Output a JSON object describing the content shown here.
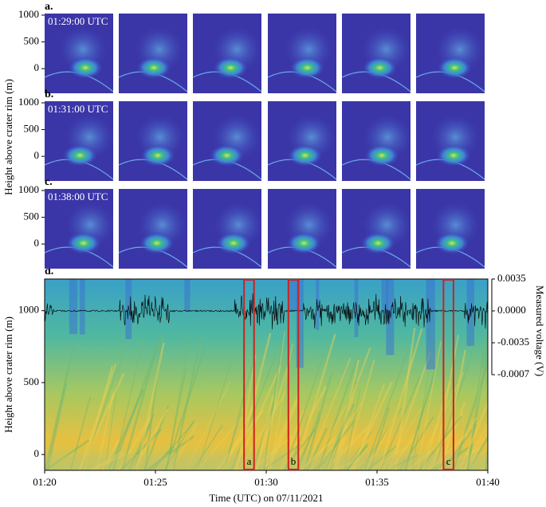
{
  "image_rows": [
    {
      "label": "a.",
      "timestamp": "01:29:00 UTC",
      "yticks": [
        1000,
        500,
        0
      ],
      "ylim": [
        -460,
        1030
      ]
    },
    {
      "label": "b.",
      "timestamp": "01:31:00 UTC",
      "yticks": [
        1000,
        500,
        0
      ],
      "ylim": [
        -460,
        1030
      ]
    },
    {
      "label": "c.",
      "timestamp": "01:38:00 UTC",
      "yticks": [
        1000,
        500,
        0
      ],
      "ylim": [
        -460,
        1030
      ]
    }
  ],
  "image_ylabel": "Height above crater rim (m)",
  "panel_d": {
    "label": "d.",
    "ylabel": "Height above crater rim (m)",
    "y2label": "Measured voltage (V)",
    "xlabel": "Time (UTC) on 07/11/2021",
    "xlim": [
      0,
      20
    ],
    "xticks": [
      {
        "value": 0,
        "label": "01:20"
      },
      {
        "value": 5,
        "label": "01:25"
      },
      {
        "value": 10,
        "label": "01:30"
      },
      {
        "value": 15,
        "label": "01:35"
      },
      {
        "value": 20,
        "label": "01:40"
      }
    ],
    "ylim": [
      -110,
      1220
    ],
    "yticks": [
      1000,
      500,
      0
    ],
    "y2ticks": [
      0.0035,
      {
        "value": 0,
        "label": "0.0000"
      },
      -0.0035,
      -0.0007
    ],
    "boxes": [
      {
        "label": "a",
        "start": 9,
        "end": 9.45
      },
      {
        "label": "b",
        "start": 11,
        "end": 11.45
      },
      {
        "label": "c",
        "start": 18,
        "end": 18.45
      }
    ]
  }
}
